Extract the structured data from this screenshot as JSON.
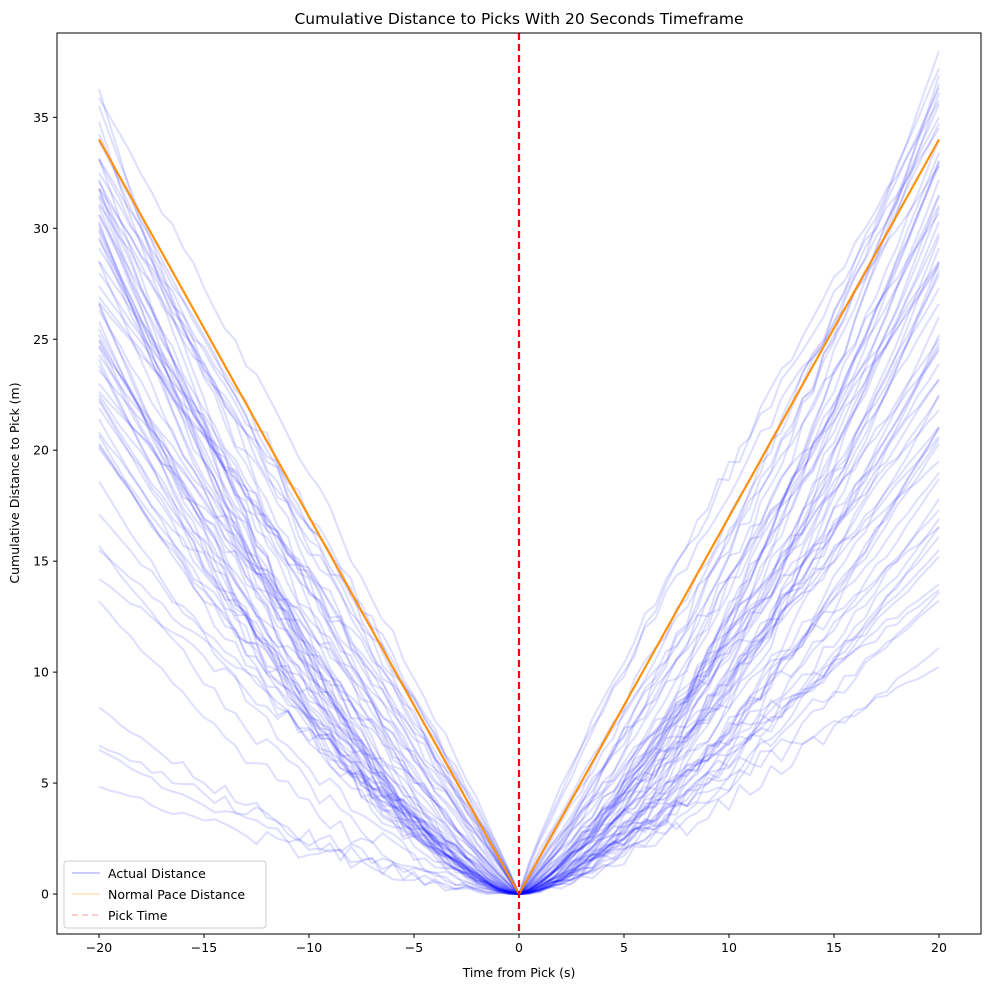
{
  "chart_data": {
    "type": "line",
    "title": "Cumulative Distance to Picks With 20 Seconds Timeframe",
    "xlabel": "Time from Pick (s)",
    "ylabel": "Cumulative Distance to Pick (m)",
    "xlim": [
      -22,
      22
    ],
    "ylim": [
      -1.8,
      38.8
    ],
    "xticks": [
      -20,
      -15,
      -10,
      -5,
      0,
      5,
      10,
      15,
      20
    ],
    "yticks": [
      0,
      5,
      10,
      15,
      20,
      25,
      30,
      35
    ],
    "xtick_labels": [
      "−20",
      "−15",
      "−10",
      "−5",
      "0",
      "5",
      "10",
      "15",
      "20"
    ],
    "ytick_labels": [
      "0",
      "5",
      "10",
      "15",
      "20",
      "25",
      "30",
      "35"
    ],
    "grid": false,
    "legend": {
      "placement": "lower-left",
      "entries": [
        "Actual Distance",
        "Normal Pace Distance",
        "Pick Time"
      ]
    },
    "colors": {
      "actual": "#0000ff",
      "normal": "#ff8c00",
      "pick": "#ff0000"
    },
    "normal_pace": {
      "name": "Normal Pace Distance",
      "x": [
        -20,
        0,
        20
      ],
      "y": [
        34.0,
        0.0,
        34.0
      ]
    },
    "pick_time": {
      "name": "Pick Time",
      "x": 0
    },
    "actual_distance": {
      "name": "Actual Distance",
      "note_count": 110,
      "left_endpoints": [
        35.5,
        34.8,
        33.9,
        33.1,
        32.5,
        32.2,
        31.8,
        31.5,
        31.0,
        30.6,
        30.3,
        30.0,
        29.6,
        29.1,
        28.5,
        28.0,
        27.4,
        26.9,
        26.3,
        25.8,
        25.2,
        24.7,
        24.1,
        23.6,
        23.0,
        22.5,
        21.9,
        21.4,
        20.8,
        20.3,
        18.6,
        17.1,
        15.7,
        15.5,
        14.2,
        13.2,
        8.4,
        6.7,
        6.5,
        4.85
      ],
      "right_endpoints": [
        36.9,
        36.5,
        36.1,
        35.6,
        35.0,
        34.5,
        34.0,
        33.4,
        32.8,
        32.2,
        31.5,
        30.9,
        30.3,
        29.6,
        29.1,
        28.5,
        27.9,
        27.3,
        26.6,
        26.0,
        25.2,
        24.5,
        23.9,
        23.2,
        22.5,
        21.8,
        21.0,
        20.3,
        19.5,
        18.7,
        17.8,
        16.9,
        16.1,
        15.5,
        15.2,
        13.7,
        13.6,
        11.1
      ]
    }
  }
}
